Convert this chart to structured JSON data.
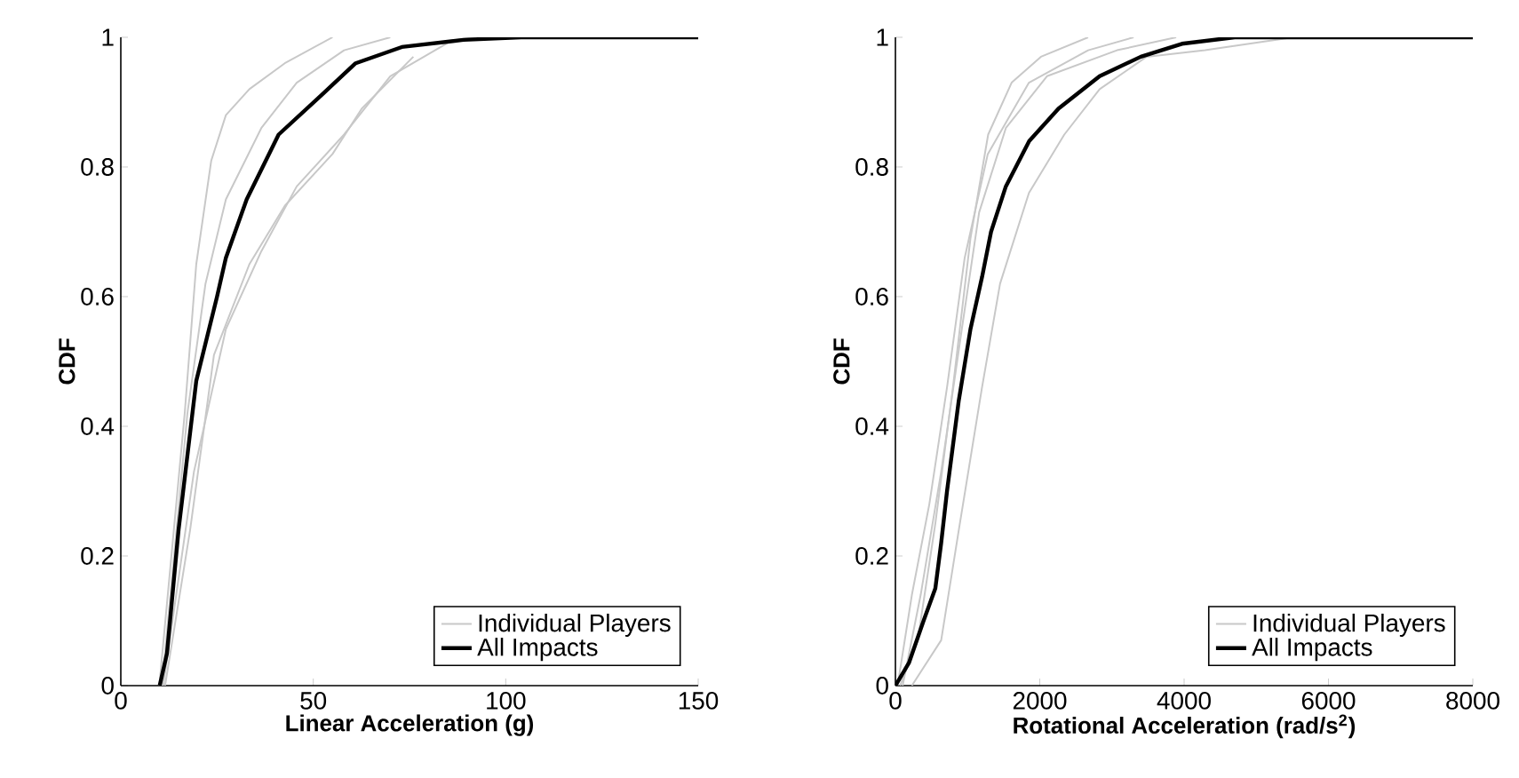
{
  "chart_data": [
    {
      "type": "line",
      "xlabel": "Linear Acceleration (g)",
      "ylabel": "CDF",
      "xlim": [
        0,
        150
      ],
      "ylim": [
        0,
        1
      ],
      "xticks": [
        0,
        50,
        100,
        150
      ],
      "yticks": [
        0,
        0.2,
        0.4,
        0.6,
        0.8,
        1
      ],
      "grid": false,
      "legend": "bottom right",
      "series": [
        {
          "name": "Individual Players",
          "color": "#c8c8c8",
          "x": [
            10,
            16.6,
            19.6,
            23.5,
            27.3,
            33.4,
            42.6,
            55
          ],
          "values": [
            0,
            0.42,
            0.65,
            0.81,
            0.88,
            0.92,
            0.96,
            1
          ]
        },
        {
          "color": "#c8c8c8",
          "x": [
            11.5,
            18,
            24.2,
            33.4,
            42.6,
            55,
            62.6,
            76
          ],
          "values": [
            0,
            0.24,
            0.51,
            0.65,
            0.74,
            0.82,
            0.89,
            0.97
          ]
        },
        {
          "color": "#c8c8c8",
          "x": [
            10.7,
            17.3,
            22,
            27.3,
            36.5,
            45.7,
            58,
            70
          ],
          "values": [
            0,
            0.42,
            0.62,
            0.75,
            0.86,
            0.93,
            0.98,
            1
          ]
        },
        {
          "color": "#c8c8c8",
          "x": [
            11,
            19,
            27.3,
            36.5,
            45.7,
            58,
            70,
            86,
            92
          ],
          "values": [
            0,
            0.33,
            0.55,
            0.67,
            0.77,
            0.85,
            0.94,
            0.995,
            1
          ]
        },
        {
          "name": "All Impacts",
          "color": "#000000",
          "x": [
            10.1,
            12,
            15,
            19.6,
            25,
            27.3,
            32.7,
            41,
            52,
            61,
            73,
            89,
            104,
            150
          ],
          "values": [
            0,
            0.05,
            0.24,
            0.47,
            0.6,
            0.66,
            0.75,
            0.85,
            0.91,
            0.96,
            0.985,
            0.996,
            1,
            1
          ]
        }
      ]
    },
    {
      "type": "line",
      "xlabel": "Rotational Acceleration (rad/s$^{2}$)",
      "ylabel": "CDF",
      "xlim": [
        0,
        8000
      ],
      "ylim": [
        0,
        1
      ],
      "xticks": [
        0,
        2000,
        4000,
        6000,
        8000
      ],
      "yticks": [
        0,
        0.2,
        0.4,
        0.6,
        0.8,
        1
      ],
      "grid": false,
      "legend": "bottom right",
      "series": [
        {
          "name": "Individual Players",
          "color": "#c8c8c8",
          "x": [
            65,
            309,
            553,
            797,
            1040,
            1285,
            1610,
            2016,
            2670
          ],
          "values": [
            0,
            0.07,
            0.25,
            0.46,
            0.69,
            0.85,
            0.93,
            0.97,
            1
          ]
        },
        {
          "color": "#c8c8c8",
          "x": [
            228,
            634,
            878,
            1200,
            1450,
            1850,
            2340,
            2830,
            3480,
            4290,
            5510
          ],
          "values": [
            0,
            0.07,
            0.24,
            0.46,
            0.62,
            0.76,
            0.85,
            0.92,
            0.97,
            0.98,
            1
          ]
        },
        {
          "color": "#c8c8c8",
          "x": [
            100,
            350,
            634,
            920,
            1160,
            1530,
            2100,
            3070,
            3890
          ],
          "values": [
            0,
            0.14,
            0.33,
            0.55,
            0.73,
            0.86,
            0.94,
            0.98,
            1
          ]
        },
        {
          "color": "#c8c8c8",
          "x": [
            30,
            228,
            470,
            715,
            960,
            1280,
            1850,
            2670,
            3300
          ],
          "values": [
            0,
            0.14,
            0.28,
            0.46,
            0.66,
            0.82,
            0.93,
            0.98,
            1
          ]
        },
        {
          "name": "All Impacts",
          "color": "#000000",
          "x": [
            0,
            187,
            390,
            553,
            634,
            715,
            878,
            1040,
            1200,
            1325,
            1530,
            1854,
            2260,
            2830,
            3400,
            3970,
            4700,
            8000
          ],
          "values": [
            0,
            0.035,
            0.1,
            0.15,
            0.22,
            0.3,
            0.44,
            0.55,
            0.63,
            0.7,
            0.77,
            0.84,
            0.89,
            0.94,
            0.97,
            0.99,
            1,
            1
          ]
        }
      ]
    }
  ]
}
